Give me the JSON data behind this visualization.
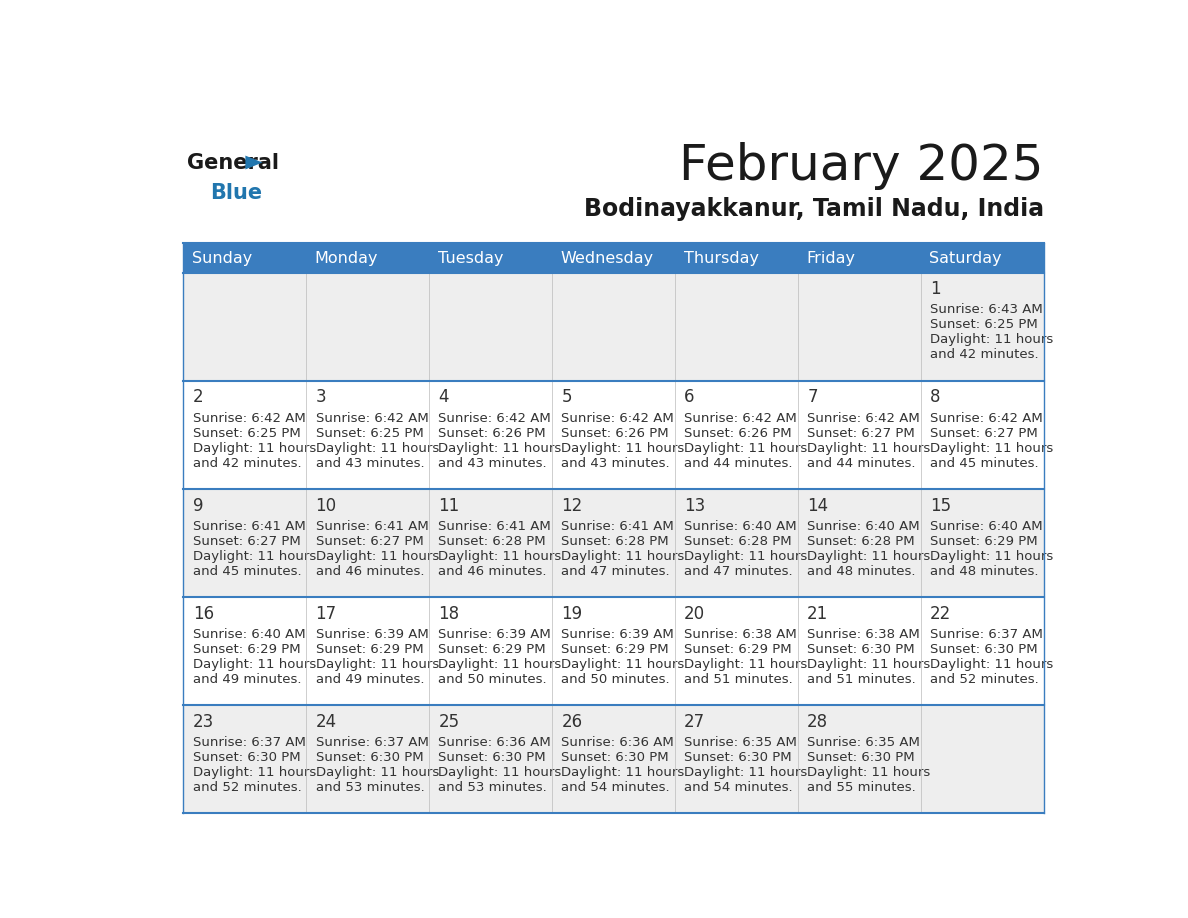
{
  "title": "February 2025",
  "subtitle": "Bodinayakkanur, Tamil Nadu, India",
  "header_color": "#3a7dbf",
  "header_text_color": "#ffffff",
  "day_names": [
    "Sunday",
    "Monday",
    "Tuesday",
    "Wednesday",
    "Thursday",
    "Friday",
    "Saturday"
  ],
  "bg_color": "#ffffff",
  "cell_bg_light": "#eeeeee",
  "cell_bg_white": "#ffffff",
  "border_color": "#3a7dbf",
  "day_number_color": "#333333",
  "text_color": "#333333",
  "title_color": "#1a1a1a",
  "calendar": [
    [
      null,
      null,
      null,
      null,
      null,
      null,
      {
        "day": "1",
        "sunrise": "6:43 AM",
        "sunset": "6:25 PM",
        "daylight_hours": "11 hours",
        "daylight_mins": "and 42 minutes."
      }
    ],
    [
      {
        "day": "2",
        "sunrise": "6:42 AM",
        "sunset": "6:25 PM",
        "daylight_hours": "11 hours",
        "daylight_mins": "and 42 minutes."
      },
      {
        "day": "3",
        "sunrise": "6:42 AM",
        "sunset": "6:25 PM",
        "daylight_hours": "11 hours",
        "daylight_mins": "and 43 minutes."
      },
      {
        "day": "4",
        "sunrise": "6:42 AM",
        "sunset": "6:26 PM",
        "daylight_hours": "11 hours",
        "daylight_mins": "and 43 minutes."
      },
      {
        "day": "5",
        "sunrise": "6:42 AM",
        "sunset": "6:26 PM",
        "daylight_hours": "11 hours",
        "daylight_mins": "and 43 minutes."
      },
      {
        "day": "6",
        "sunrise": "6:42 AM",
        "sunset": "6:26 PM",
        "daylight_hours": "11 hours",
        "daylight_mins": "and 44 minutes."
      },
      {
        "day": "7",
        "sunrise": "6:42 AM",
        "sunset": "6:27 PM",
        "daylight_hours": "11 hours",
        "daylight_mins": "and 44 minutes."
      },
      {
        "day": "8",
        "sunrise": "6:42 AM",
        "sunset": "6:27 PM",
        "daylight_hours": "11 hours",
        "daylight_mins": "and 45 minutes."
      }
    ],
    [
      {
        "day": "9",
        "sunrise": "6:41 AM",
        "sunset": "6:27 PM",
        "daylight_hours": "11 hours",
        "daylight_mins": "and 45 minutes."
      },
      {
        "day": "10",
        "sunrise": "6:41 AM",
        "sunset": "6:27 PM",
        "daylight_hours": "11 hours",
        "daylight_mins": "and 46 minutes."
      },
      {
        "day": "11",
        "sunrise": "6:41 AM",
        "sunset": "6:28 PM",
        "daylight_hours": "11 hours",
        "daylight_mins": "and 46 minutes."
      },
      {
        "day": "12",
        "sunrise": "6:41 AM",
        "sunset": "6:28 PM",
        "daylight_hours": "11 hours",
        "daylight_mins": "and 47 minutes."
      },
      {
        "day": "13",
        "sunrise": "6:40 AM",
        "sunset": "6:28 PM",
        "daylight_hours": "11 hours",
        "daylight_mins": "and 47 minutes."
      },
      {
        "day": "14",
        "sunrise": "6:40 AM",
        "sunset": "6:28 PM",
        "daylight_hours": "11 hours",
        "daylight_mins": "and 48 minutes."
      },
      {
        "day": "15",
        "sunrise": "6:40 AM",
        "sunset": "6:29 PM",
        "daylight_hours": "11 hours",
        "daylight_mins": "and 48 minutes."
      }
    ],
    [
      {
        "day": "16",
        "sunrise": "6:40 AM",
        "sunset": "6:29 PM",
        "daylight_hours": "11 hours",
        "daylight_mins": "and 49 minutes."
      },
      {
        "day": "17",
        "sunrise": "6:39 AM",
        "sunset": "6:29 PM",
        "daylight_hours": "11 hours",
        "daylight_mins": "and 49 minutes."
      },
      {
        "day": "18",
        "sunrise": "6:39 AM",
        "sunset": "6:29 PM",
        "daylight_hours": "11 hours",
        "daylight_mins": "and 50 minutes."
      },
      {
        "day": "19",
        "sunrise": "6:39 AM",
        "sunset": "6:29 PM",
        "daylight_hours": "11 hours",
        "daylight_mins": "and 50 minutes."
      },
      {
        "day": "20",
        "sunrise": "6:38 AM",
        "sunset": "6:29 PM",
        "daylight_hours": "11 hours",
        "daylight_mins": "and 51 minutes."
      },
      {
        "day": "21",
        "sunrise": "6:38 AM",
        "sunset": "6:30 PM",
        "daylight_hours": "11 hours",
        "daylight_mins": "and 51 minutes."
      },
      {
        "day": "22",
        "sunrise": "6:37 AM",
        "sunset": "6:30 PM",
        "daylight_hours": "11 hours",
        "daylight_mins": "and 52 minutes."
      }
    ],
    [
      {
        "day": "23",
        "sunrise": "6:37 AM",
        "sunset": "6:30 PM",
        "daylight_hours": "11 hours",
        "daylight_mins": "and 52 minutes."
      },
      {
        "day": "24",
        "sunrise": "6:37 AM",
        "sunset": "6:30 PM",
        "daylight_hours": "11 hours",
        "daylight_mins": "and 53 minutes."
      },
      {
        "day": "25",
        "sunrise": "6:36 AM",
        "sunset": "6:30 PM",
        "daylight_hours": "11 hours",
        "daylight_mins": "and 53 minutes."
      },
      {
        "day": "26",
        "sunrise": "6:36 AM",
        "sunset": "6:30 PM",
        "daylight_hours": "11 hours",
        "daylight_mins": "and 54 minutes."
      },
      {
        "day": "27",
        "sunrise": "6:35 AM",
        "sunset": "6:30 PM",
        "daylight_hours": "11 hours",
        "daylight_mins": "and 54 minutes."
      },
      {
        "day": "28",
        "sunrise": "6:35 AM",
        "sunset": "6:30 PM",
        "daylight_hours": "11 hours",
        "daylight_mins": "and 55 minutes."
      },
      null
    ]
  ],
  "logo_general_color": "#1a1a1a",
  "logo_blue_color": "#2176ae",
  "logo_triangle_color": "#2176ae"
}
